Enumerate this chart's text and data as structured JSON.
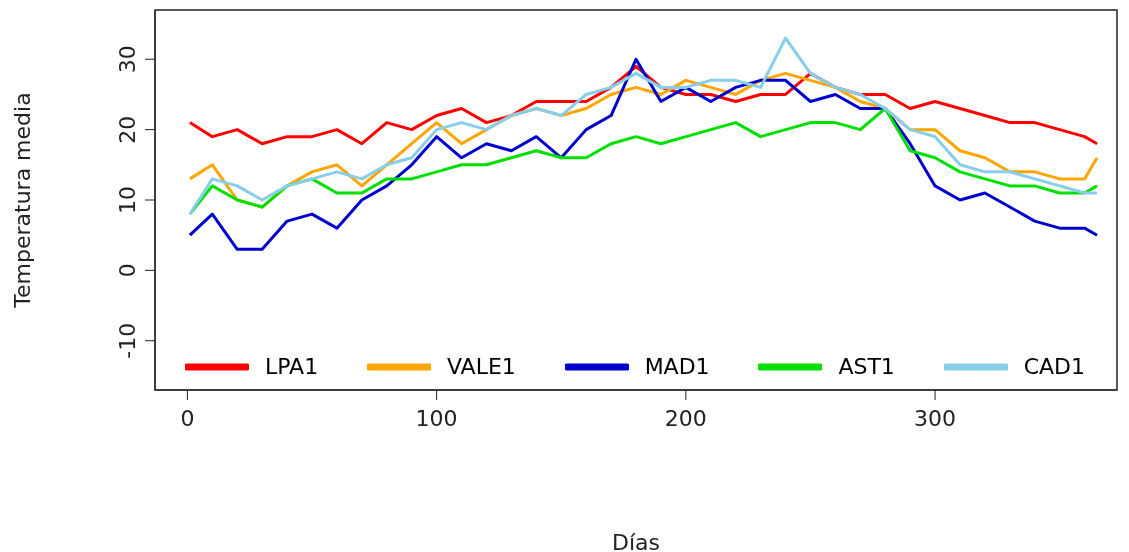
{
  "chart_data": {
    "type": "line",
    "xlabel": "Días",
    "ylabel": "Temperatura media",
    "x": [
      1,
      10,
      20,
      30,
      40,
      50,
      60,
      70,
      80,
      90,
      100,
      110,
      120,
      130,
      140,
      150,
      160,
      170,
      180,
      190,
      200,
      210,
      220,
      230,
      240,
      250,
      260,
      270,
      280,
      290,
      300,
      310,
      320,
      330,
      340,
      350,
      360,
      365
    ],
    "series": [
      {
        "name": "LPA1",
        "color": "#ff0000",
        "values": [
          21,
          19,
          20,
          18,
          19,
          19,
          20,
          18,
          21,
          20,
          22,
          23,
          21,
          22,
          24,
          24,
          24,
          26,
          29,
          26,
          25,
          25,
          24,
          25,
          25,
          28,
          26,
          25,
          25,
          23,
          24,
          23,
          22,
          21,
          21,
          20,
          19,
          18
        ]
      },
      {
        "name": "VALE1",
        "color": "#ffa500",
        "values": [
          13,
          15,
          10,
          9,
          12,
          14,
          15,
          12,
          15,
          18,
          21,
          18,
          20,
          22,
          23,
          22,
          23,
          25,
          26,
          25,
          27,
          26,
          25,
          27,
          28,
          27,
          26,
          24,
          23,
          20,
          20,
          17,
          16,
          14,
          14,
          13,
          13,
          16
        ]
      },
      {
        "name": "MAD1",
        "color": "#0000cd",
        "values": [
          5,
          8,
          3,
          3,
          7,
          8,
          6,
          10,
          12,
          15,
          19,
          16,
          18,
          17,
          19,
          16,
          20,
          22,
          30,
          24,
          26,
          24,
          26,
          27,
          27,
          24,
          25,
          23,
          23,
          18,
          12,
          10,
          11,
          9,
          7,
          6,
          6,
          5
        ]
      },
      {
        "name": "AST1",
        "color": "#00e000",
        "values": [
          8,
          12,
          10,
          9,
          12,
          13,
          11,
          11,
          13,
          13,
          14,
          15,
          15,
          16,
          17,
          16,
          16,
          18,
          19,
          18,
          19,
          20,
          21,
          19,
          20,
          21,
          21,
          20,
          23,
          17,
          16,
          14,
          13,
          12,
          12,
          11,
          11,
          12
        ]
      },
      {
        "name": "CAD1",
        "color": "#87ceeb",
        "values": [
          8,
          13,
          12,
          10,
          12,
          13,
          14,
          13,
          15,
          16,
          20,
          21,
          20,
          22,
          23,
          22,
          25,
          26,
          28,
          26,
          26,
          27,
          27,
          26,
          33,
          28,
          26,
          25,
          23,
          20,
          19,
          15,
          14,
          14,
          13,
          12,
          11,
          11
        ]
      }
    ],
    "xlim": [
      -13,
      373
    ],
    "ylim": [
      -17,
      37
    ],
    "xticks": [
      0,
      100,
      200,
      300
    ],
    "yticks": [
      -10,
      0,
      10,
      20,
      30
    ],
    "legend": "bottom",
    "grid": false,
    "line_style": "solid"
  }
}
